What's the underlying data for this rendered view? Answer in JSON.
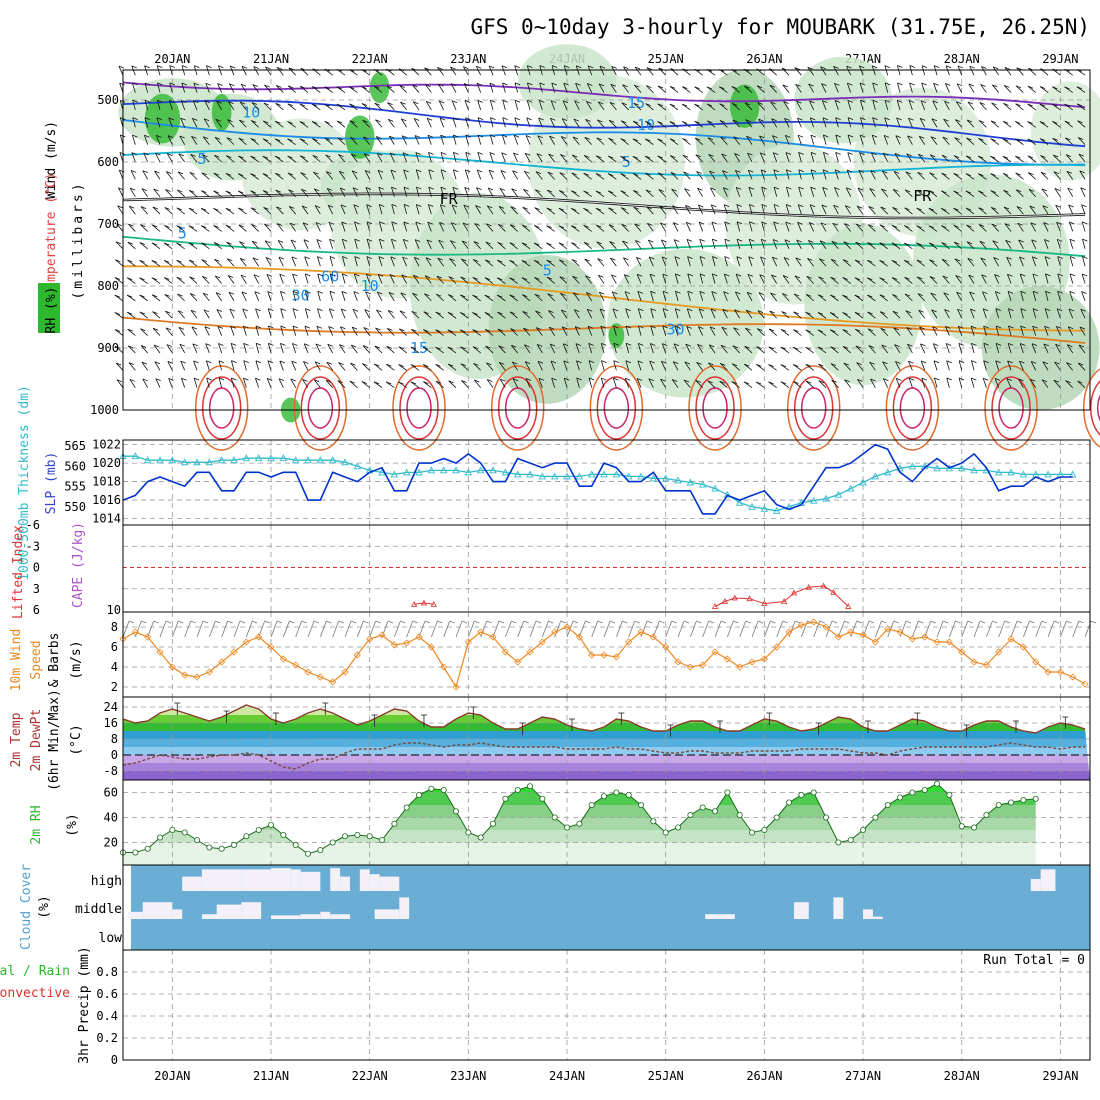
{
  "title": "GFS 0~10day 3-hourly for MOUBARK (31.75E, 26.25N)",
  "dates": [
    "20JAN",
    "21JAN",
    "22JAN",
    "23JAN",
    "24JAN",
    "25JAN",
    "26JAN",
    "27JAN",
    "28JAN",
    "29JAN"
  ],
  "colors": {
    "rh_green": "#2eb82e",
    "rh_light": "#e6f3e6",
    "wind_contour": "#00a6d6",
    "slp": "#0033cc",
    "thickness": "#33bbcc",
    "lifted": "#dd3333",
    "wind10": "#ee8822",
    "temp_fill": "#33cc33",
    "cloud": "#6aaed6"
  },
  "chart_data": [
    {
      "panel": "upper_air",
      "type": "heatmap",
      "ylabel_parts": [
        "RH (%)",
        "Temperature (°C)",
        "Wind (m/s)"
      ],
      "yunit": "(millibars)",
      "yticks": [
        "500",
        "600",
        "700",
        "800",
        "900",
        "1000"
      ],
      "contour_labels": [
        {
          "text": "15",
          "day": 24.7,
          "p": 505
        },
        {
          "text": "10",
          "day": 20.8,
          "p": 520
        },
        {
          "text": "10",
          "day": 24.8,
          "p": 540
        },
        {
          "text": "5",
          "day": 20.3,
          "p": 595
        },
        {
          "text": "5",
          "day": 24.6,
          "p": 600
        },
        {
          "text": "FR",
          "day": 22.8,
          "p": 660
        },
        {
          "text": "FR",
          "day": 27.6,
          "p": 655
        },
        {
          "text": "5",
          "day": 20.1,
          "p": 715
        },
        {
          "text": "5",
          "day": 23.8,
          "p": 775
        },
        {
          "text": "10",
          "day": 22.0,
          "p": 800
        },
        {
          "text": "15",
          "day": 22.5,
          "p": 900
        },
        {
          "text": "30",
          "day": 21.3,
          "p": 815
        },
        {
          "text": "30",
          "day": 25.1,
          "p": 870
        },
        {
          "text": "60",
          "day": 21.6,
          "p": 785
        }
      ]
    },
    {
      "panel": "slp_thickness",
      "type": "line",
      "ylabel_left": "1000-500mb Thickness (dm)",
      "ylabel_right": "SLP (mb)",
      "yticks_left": [
        "550",
        "555",
        "560",
        "565"
      ],
      "yticks_right": [
        "1014",
        "1016",
        "1018",
        "1020",
        "1022"
      ],
      "series": [
        {
          "name": "SLP (mb)",
          "values": [
            1016,
            1016.5,
            1018,
            1018.5,
            1018,
            1017.5,
            1019,
            1019,
            1017,
            1017,
            1019,
            1019,
            1018.5,
            1019,
            1019,
            1016,
            1016,
            1019,
            1018.5,
            1018,
            1019,
            1019.5,
            1017,
            1017,
            1020,
            1020,
            1020.5,
            1020,
            1021,
            1020,
            1018,
            1018,
            1020.5,
            1020,
            1019.5,
            1020,
            1020,
            1017.5,
            1017.5,
            1020,
            1019.5,
            1018,
            1018,
            1019,
            1017,
            1017,
            1017,
            1014.5,
            1014.5,
            1016.5,
            1016,
            1016.5,
            1017,
            1015.5,
            1015,
            1015.5,
            1017.5,
            1019.5,
            1019.5,
            1020,
            1021,
            1022,
            1021.5,
            1019,
            1018,
            1019.5,
            1020.5,
            1019.5,
            1020,
            1021,
            1019.5,
            1017,
            1017.5,
            1017.5,
            1018.5,
            1018,
            1018.5,
            1018.5
          ]
        },
        {
          "name": "1000-500mb Thickness (dm)",
          "values": [
            562.5,
            562.5,
            561.5,
            561.5,
            561.5,
            561,
            561,
            561,
            561.5,
            561.5,
            562,
            562,
            562,
            562,
            561.5,
            561.5,
            561.5,
            561.5,
            561,
            560,
            559,
            558.5,
            558,
            558.5,
            558.5,
            559,
            559,
            559,
            558.5,
            559,
            559,
            558.5,
            558,
            558,
            557.5,
            557.5,
            557.5,
            557.5,
            558,
            558,
            558,
            557.5,
            557.5,
            557,
            557,
            556.5,
            556,
            555.5,
            554.5,
            553,
            551,
            550,
            549.5,
            549,
            550,
            551,
            551.5,
            552,
            553,
            554.5,
            556,
            557.5,
            558.5,
            559.5,
            560,
            560,
            559.5,
            559.5,
            559.5,
            559,
            559,
            558.5,
            558.5,
            558,
            558,
            558,
            558,
            558
          ]
        }
      ]
    },
    {
      "panel": "lifted_cape",
      "type": "line",
      "ylabel_left": "Lifted Index",
      "ylabel_right": "CAPE (J/kg)",
      "yticks_left": [
        "-6",
        "-3",
        "0",
        "3",
        "6"
      ],
      "yticks_right": [
        "10"
      ],
      "series": [
        {
          "name": "Lifted Index",
          "points": [
            [
              22.45,
              5.2
            ],
            [
              22.55,
              5.0
            ],
            [
              22.65,
              5.2
            ],
            [
              25.5,
              5.5
            ],
            [
              25.6,
              4.8
            ],
            [
              25.7,
              4.3
            ],
            [
              25.85,
              4.4
            ],
            [
              26.0,
              5.1
            ],
            [
              26.2,
              4.8
            ],
            [
              26.3,
              3.6
            ],
            [
              26.45,
              2.8
            ],
            [
              26.6,
              2.6
            ],
            [
              26.7,
              3.5
            ],
            [
              26.85,
              5.5
            ]
          ]
        }
      ]
    },
    {
      "panel": "wind10",
      "type": "line",
      "ylabel_parts": [
        "10m Wind",
        "Speed",
        "& Barbs",
        "(m/s)"
      ],
      "yticks": [
        "2",
        "4",
        "6",
        "8"
      ],
      "series": [
        {
          "name": "10m Wind Speed",
          "values": [
            6.8,
            7.5,
            7.0,
            5.5,
            4.0,
            3.2,
            3.0,
            3.5,
            4.5,
            5.5,
            6.5,
            7.0,
            6.0,
            4.8,
            4.2,
            3.5,
            3.0,
            2.5,
            3.5,
            5.2,
            6.8,
            7.2,
            6.2,
            6.4,
            7.0,
            6.0,
            4.0,
            2.0,
            6.5,
            7.5,
            7.0,
            5.5,
            4.5,
            5.5,
            6.5,
            7.5,
            8.0,
            7.0,
            5.2,
            5.2,
            5.0,
            6.5,
            7.5,
            7.0,
            6.0,
            4.5,
            4.0,
            4.2,
            5.5,
            4.8,
            4.0,
            4.5,
            4.8,
            6.0,
            7.5,
            8.2,
            8.5,
            8.0,
            7.0,
            7.5,
            7.2,
            6.5,
            7.8,
            7.5,
            6.8,
            7.0,
            6.5,
            6.5,
            5.5,
            4.5,
            4.2,
            5.5,
            6.8,
            6.0,
            4.5,
            3.5,
            3.5,
            3.0,
            2.3
          ]
        }
      ]
    },
    {
      "panel": "temperature",
      "type": "area",
      "ylabel_parts": [
        "2m Temp",
        "2m DewPt",
        "(6hr Min/Max)",
        "(°C)"
      ],
      "yticks": [
        "-8",
        "0",
        "8",
        "16",
        "24"
      ],
      "series": [
        {
          "name": "2m Temp",
          "values": [
            18,
            16,
            17,
            21,
            23,
            21,
            19,
            17,
            19,
            22,
            25,
            23,
            18,
            16,
            18,
            21,
            23,
            21,
            18,
            15,
            17,
            20,
            23,
            22,
            17,
            14,
            14,
            18,
            21,
            20,
            16,
            13,
            13,
            16,
            19,
            18,
            15,
            13,
            12,
            14,
            18,
            17,
            14,
            12,
            12,
            15,
            17,
            17,
            14,
            12,
            12,
            15,
            18,
            17,
            14,
            12,
            13,
            16,
            19,
            18,
            14,
            12,
            12,
            15,
            18,
            17,
            14,
            12,
            12,
            15,
            17,
            17,
            14,
            12,
            11,
            14,
            16,
            15,
            13
          ]
        },
        {
          "name": "2m DewPt",
          "values": [
            -5,
            -4,
            -2,
            0,
            -1,
            -2,
            -2,
            -1,
            0,
            0,
            1,
            0,
            -3,
            -6,
            -7,
            -4,
            -2,
            -2,
            1,
            3,
            3,
            3,
            5,
            6,
            6,
            5,
            4,
            5,
            5,
            6,
            5,
            4,
            4,
            4,
            4,
            4,
            3,
            3,
            3,
            3,
            4,
            3,
            3,
            2,
            1,
            1,
            2,
            2,
            1,
            1,
            1,
            2,
            2,
            2,
            2,
            3,
            3,
            3,
            3,
            2,
            1,
            1,
            0,
            2,
            3,
            4,
            4,
            4,
            4,
            4,
            4,
            5,
            6,
            5,
            4,
            4,
            3,
            4,
            4
          ]
        }
      ]
    },
    {
      "panel": "rh2m",
      "type": "area",
      "ylabel_parts": [
        "2m RH",
        "(%)"
      ],
      "yticks": [
        "20",
        "40",
        "60"
      ],
      "series": [
        {
          "name": "2m RH",
          "values": [
            12,
            12,
            15,
            24,
            30,
            28,
            22,
            16,
            15,
            18,
            25,
            30,
            34,
            26,
            18,
            11,
            14,
            20,
            25,
            26,
            25,
            22,
            35,
            48,
            58,
            63,
            62,
            45,
            28,
            24,
            35,
            55,
            62,
            65,
            55,
            40,
            32,
            35,
            50,
            57,
            60,
            58,
            50,
            37,
            28,
            32,
            42,
            48,
            45,
            60,
            42,
            28,
            30,
            40,
            52,
            58,
            60,
            40,
            20,
            22,
            30,
            40,
            50,
            56,
            60,
            62,
            67,
            58,
            33,
            32,
            42,
            50,
            52,
            54,
            55,
            54,
            0,
            0,
            0
          ]
        }
      ]
    },
    {
      "panel": "cloud_cover",
      "type": "bar",
      "ylabel_parts": [
        "Cloud Cover",
        "(%)"
      ],
      "levels": [
        "high",
        "middle",
        "low"
      ]
    },
    {
      "panel": "precip",
      "type": "bar",
      "ylabel_parts": [
        "Total / Rain",
        "Convective",
        "3hr Precip (mm)"
      ],
      "yticks": [
        "0",
        "0.2",
        "0.4",
        "0.6",
        "0.8"
      ],
      "run_total": "Run Total = 0",
      "values": []
    }
  ]
}
